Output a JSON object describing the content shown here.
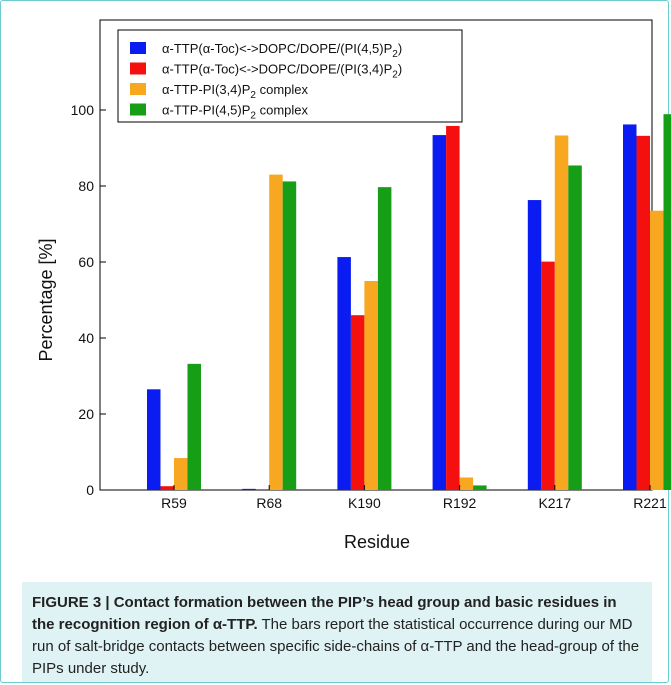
{
  "chart_data": {
    "type": "bar",
    "xlabel": "Residue",
    "ylabel": "Percentage [%]",
    "ylim": [
      0,
      100
    ],
    "yticks": [
      0,
      20,
      40,
      60,
      80,
      100
    ],
    "categories": [
      "R59",
      "R68",
      "K190",
      "R192",
      "K217",
      "R221"
    ],
    "legend_position": "top-left",
    "series": [
      {
        "name_parts": {
          "pre": "α-TTP(α-Toc)<->DOPC/DOPE/(PI(4,5)P",
          "sub": "2",
          "post": ")"
        },
        "color": "#0a1cf2",
        "values": [
          26.5,
          0.3,
          61.3,
          93.4,
          76.3,
          96.2
        ]
      },
      {
        "name_parts": {
          "pre": "α-TTP(α-Toc)<->DOPC/DOPE/(PI(3,4)P",
          "sub": "2",
          "post": ")"
        },
        "color": "#f51010",
        "values": [
          1.0,
          0.0,
          46.0,
          95.8,
          60.1,
          93.2
        ]
      },
      {
        "name_parts": {
          "pre": "α-TTP-PI(3,4)P",
          "sub": "2",
          "post": " complex"
        },
        "color": "#f8a820",
        "values": [
          8.4,
          83.0,
          55.0,
          3.3,
          93.3,
          73.5
        ]
      },
      {
        "name_parts": {
          "pre": "α-TTP-PI(4,5)P",
          "sub": "2",
          "post": " complex"
        },
        "color": "#169e16",
        "values": [
          33.2,
          81.2,
          79.7,
          1.2,
          85.4,
          98.9
        ]
      }
    ]
  },
  "caption": {
    "label": "FIGURE 3 | Contact formation between the PIP’s head group and basic residues in the recognition region of α-TTP.",
    "text": " The bars report the statistical occurrence during our MD run of salt-bridge contacts between specific side-chains of α-TTP and the head-group of the PIPs under study."
  }
}
